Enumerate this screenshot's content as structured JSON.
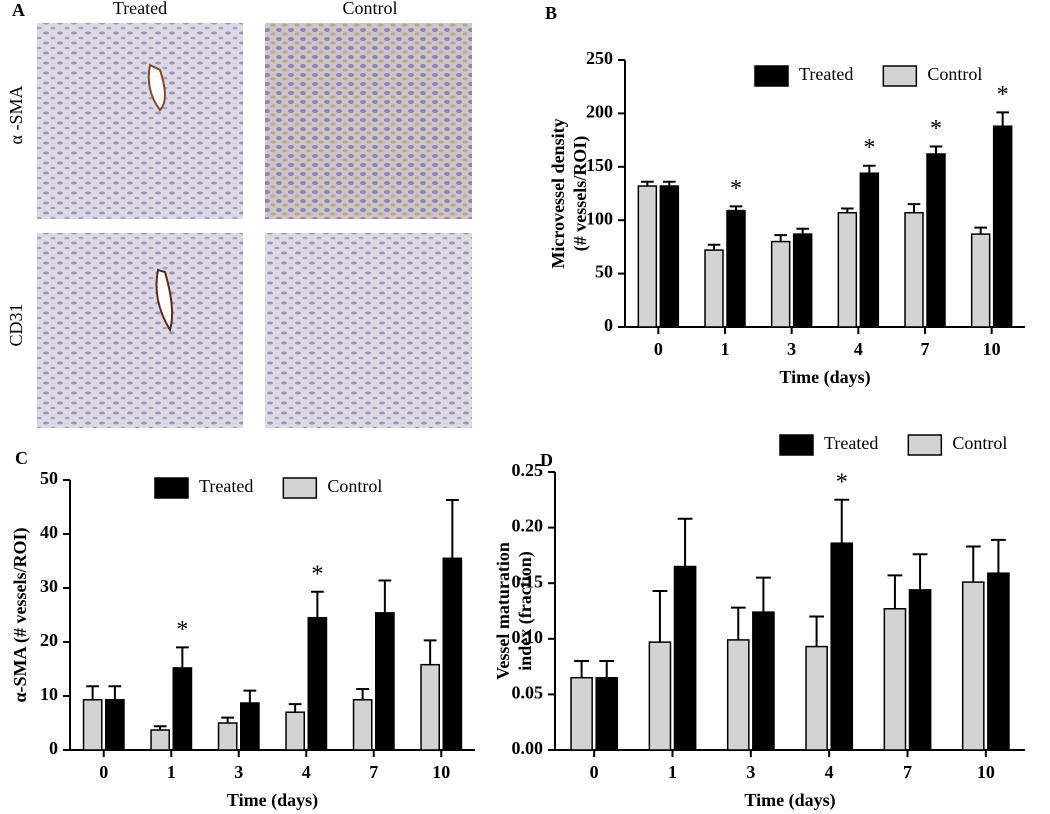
{
  "panel_a": {
    "label": "A",
    "columns": [
      "Treated",
      "Control"
    ],
    "rows": [
      "α -SMA",
      "CD31"
    ]
  },
  "chart_data": [
    {
      "type": "bar",
      "panel": "B",
      "ylabel": [
        "Microvessel density",
        "(# vessels/ROI)"
      ],
      "xlabel": "Time (days)",
      "categories": [
        "0",
        "1",
        "3",
        "4",
        "7",
        "10"
      ],
      "series": [
        {
          "name": "Treated",
          "color": "#000000",
          "values": [
            132,
            109,
            87,
            144,
            162,
            188
          ],
          "errors": [
            4,
            4,
            5,
            7,
            7,
            13
          ]
        },
        {
          "name": "Control",
          "color": "#d3d3d3",
          "values": [
            132,
            72,
            80,
            107,
            107,
            87
          ],
          "errors": [
            4,
            5,
            6,
            4,
            8,
            6
          ]
        }
      ],
      "significance": [
        null,
        "*",
        null,
        "*",
        "*",
        "*"
      ],
      "ylim": [
        0,
        250
      ],
      "yticks": [
        0,
        50,
        100,
        150,
        200,
        250
      ],
      "legend": "upper right"
    },
    {
      "type": "bar",
      "panel": "C",
      "ylabel": [
        "α-SMA (# vessels/ROI)"
      ],
      "xlabel": "Time (days)",
      "categories": [
        "0",
        "1",
        "3",
        "4",
        "7",
        "10"
      ],
      "series": [
        {
          "name": "Treated",
          "color": "#000000",
          "values": [
            9.3,
            15.2,
            8.7,
            24.5,
            25.4,
            35.5
          ],
          "errors": [
            2.5,
            3.8,
            2.3,
            4.8,
            6,
            10.8
          ]
        },
        {
          "name": "Control",
          "color": "#d3d3d3",
          "values": [
            9.3,
            3.7,
            5,
            7,
            9.3,
            15.8
          ],
          "errors": [
            2.5,
            0.7,
            1,
            1.5,
            2,
            4.5
          ]
        }
      ],
      "significance": [
        null,
        "*",
        null,
        "*",
        null,
        null
      ],
      "ylim": [
        0,
        50
      ],
      "yticks": [
        0,
        10,
        20,
        30,
        40,
        50
      ],
      "legend": "upper center"
    },
    {
      "type": "bar",
      "panel": "D",
      "ylabel": [
        "Vessel maturation",
        "index (fraction)"
      ],
      "xlabel": "Time (days)",
      "categories": [
        "0",
        "1",
        "3",
        "4",
        "7",
        "10"
      ],
      "series": [
        {
          "name": "Treated",
          "color": "#000000",
          "values": [
            0.065,
            0.165,
            0.124,
            0.186,
            0.144,
            0.159
          ],
          "errors": [
            0.015,
            0.043,
            0.031,
            0.039,
            0.032,
            0.03
          ]
        },
        {
          "name": "Control",
          "color": "#d3d3d3",
          "values": [
            0.065,
            0.097,
            0.099,
            0.093,
            0.127,
            0.151
          ],
          "errors": [
            0.015,
            0.046,
            0.029,
            0.027,
            0.03,
            0.032
          ]
        }
      ],
      "significance": [
        null,
        null,
        null,
        "*",
        null,
        null
      ],
      "ylim": [
        0,
        0.25
      ],
      "yticks": [
        {
          "value": 0,
          "label": "0.00"
        },
        {
          "value": 0.05,
          "label": "0.05"
        },
        {
          "value": 0.1,
          "label": "0.10"
        },
        {
          "value": 0.15,
          "label": "0.15"
        },
        {
          "value": 0.2,
          "label": "0.20"
        },
        {
          "value": 0.25,
          "label": "0.25"
        }
      ],
      "legend": "above"
    }
  ]
}
